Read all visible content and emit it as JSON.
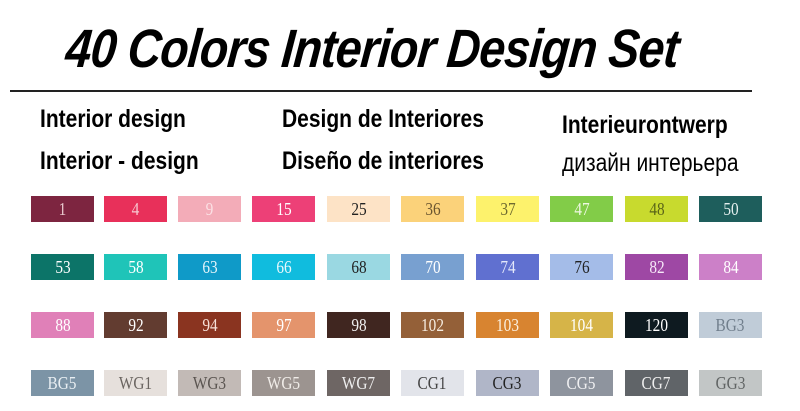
{
  "title": "40 Colors Interior Design Set",
  "labels": [
    [
      "Interior design",
      "Interior - design"
    ],
    [
      "Design de Interiores",
      "Diseño de interiores"
    ],
    [
      "Interieurontwerp",
      "дизайн интерьера"
    ]
  ],
  "swatches": [
    {
      "code": "1",
      "color": "#7d2540",
      "text": "#e8c8cc"
    },
    {
      "code": "4",
      "color": "#e8305a",
      "text": "#f6c8d0"
    },
    {
      "code": "9",
      "color": "#f3acb8",
      "text": "#fbe0e4"
    },
    {
      "code": "15",
      "color": "#ed4077",
      "text": "#ffffff"
    },
    {
      "code": "25",
      "color": "#fde3c6",
      "text": "#222222"
    },
    {
      "code": "36",
      "color": "#fbd27a",
      "text": "#6a5530"
    },
    {
      "code": "37",
      "color": "#fdf26c",
      "text": "#6e6a30"
    },
    {
      "code": "47",
      "color": "#82cc48",
      "text": "#eef8e2"
    },
    {
      "code": "48",
      "color": "#c8da2e",
      "text": "#5a6418"
    },
    {
      "code": "50",
      "color": "#1e5e5c",
      "text": "#e4efee"
    },
    {
      "code": "53",
      "color": "#0c7468",
      "text": "#ffffff"
    },
    {
      "code": "58",
      "color": "#1fc4b8",
      "text": "#ffffff"
    },
    {
      "code": "63",
      "color": "#0f9ac8",
      "text": "#e4f4fa"
    },
    {
      "code": "66",
      "color": "#10bcde",
      "text": "#e8f8fc"
    },
    {
      "code": "68",
      "color": "#9ad8e2",
      "text": "#222222"
    },
    {
      "code": "70",
      "color": "#78a0d0",
      "text": "#ffffff"
    },
    {
      "code": "74",
      "color": "#6070d0",
      "text": "#e4e8fa"
    },
    {
      "code": "76",
      "color": "#a4bce8",
      "text": "#222222"
    },
    {
      "code": "82",
      "color": "#9e48a4",
      "text": "#f6e8f8"
    },
    {
      "code": "84",
      "color": "#cc80c8",
      "text": "#ffffff"
    },
    {
      "code": "88",
      "color": "#e080b8",
      "text": "#ffffff"
    },
    {
      "code": "92",
      "color": "#623c30",
      "text": "#ffffff"
    },
    {
      "code": "94",
      "color": "#8a3420",
      "text": "#f6e0d8"
    },
    {
      "code": "97",
      "color": "#e4946c",
      "text": "#ffffff"
    },
    {
      "code": "98",
      "color": "#402620",
      "text": "#eeeeee"
    },
    {
      "code": "102",
      "color": "#946038",
      "text": "#f6ece0"
    },
    {
      "code": "103",
      "color": "#d88430",
      "text": "#fbf0e0"
    },
    {
      "code": "104",
      "color": "#d6b448",
      "text": "#ffffff"
    },
    {
      "code": "120",
      "color": "#0e1a20",
      "text": "#ffffff"
    },
    {
      "code": "BG3",
      "color": "#c0ccd8",
      "text": "#707e8c"
    },
    {
      "code": "BG5",
      "color": "#7c94a6",
      "text": "#e8eef2"
    },
    {
      "code": "WG1",
      "color": "#e6e0dc",
      "text": "#6a6460"
    },
    {
      "code": "WG3",
      "color": "#c2bab6",
      "text": "#5a5450"
    },
    {
      "code": "WG5",
      "color": "#9c9490",
      "text": "#f0ece8"
    },
    {
      "code": "WG7",
      "color": "#6e6664",
      "text": "#eeeeee"
    },
    {
      "code": "CG1",
      "color": "#e2e4ea",
      "text": "#444444"
    },
    {
      "code": "CG3",
      "color": "#b0b6c8",
      "text": "#222222"
    },
    {
      "code": "CG5",
      "color": "#8e949e",
      "text": "#f0f0f2"
    },
    {
      "code": "CG7",
      "color": "#606468",
      "text": "#eeeeee"
    },
    {
      "code": "GG3",
      "color": "#c2c6c6",
      "text": "#606464"
    }
  ]
}
